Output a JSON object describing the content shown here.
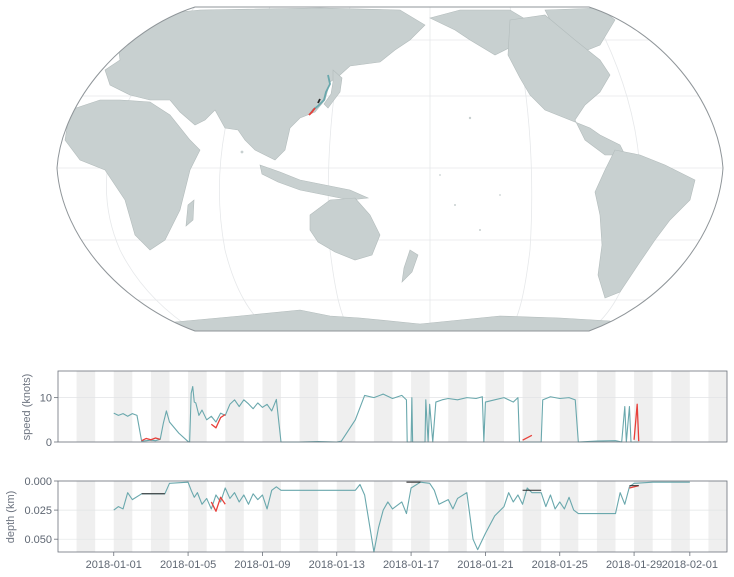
{
  "colors": {
    "land": "#c8d0d0",
    "land_stroke": "#b3bcbc",
    "ocean": "#ffffff",
    "graticule": "#e6e8ea",
    "map_outline": "#8f9599",
    "stripe": "#efefef",
    "axis": "#6b717a",
    "track": "#6aa8ad",
    "anomaly": "#e8403a",
    "gap": "#2b2b2b"
  },
  "chart_data": [
    {
      "type": "map",
      "projection": "robinson",
      "center_longitude": 150,
      "graticule": true,
      "features": [
        "Eurasia",
        "Africa",
        "Australia",
        "North America",
        "South America",
        "Antarctica",
        "Greenland"
      ],
      "track_region": "East China Sea / Yellow Sea coast"
    },
    {
      "type": "line",
      "ylabel": "speed (knots)",
      "yticks": [
        0,
        10
      ],
      "ylim": [
        0,
        16
      ],
      "xlim": [
        "2017-12-29",
        "2018-02-03"
      ],
      "stripes": "alternating daily shading",
      "series": [
        {
          "color_role": "track",
          "points": [
            [
              "2018-01-01 00:00",
              6.5
            ],
            [
              "2018-01-01 06:00",
              6.0
            ],
            [
              "2018-01-01 12:00",
              6.4
            ],
            [
              "2018-01-01 18:00",
              5.8
            ],
            [
              "2018-01-02 00:00",
              6.4
            ],
            [
              "2018-01-02 06:00",
              6.0
            ],
            [
              "2018-01-02 12:00",
              0.2
            ],
            [
              "2018-01-02 18:00",
              0.3
            ],
            [
              "2018-01-03 00:00",
              0.4
            ],
            [
              "2018-01-03 06:00",
              0.3
            ],
            [
              "2018-01-03 12:00",
              0.6
            ],
            [
              "2018-01-03 16:00",
              4.2
            ],
            [
              "2018-01-03 20:00",
              7.0
            ],
            [
              "2018-01-04 00:00",
              4.5
            ],
            [
              "2018-01-04 12:00",
              2.0
            ],
            [
              "2018-01-05 00:00",
              0.1
            ],
            [
              "2018-01-05 02:00",
              0.0
            ],
            [
              "2018-01-05 04:00",
              11.0
            ],
            [
              "2018-01-05 06:00",
              12.5
            ],
            [
              "2018-01-05 08:00",
              9.0
            ],
            [
              "2018-01-05 10:00",
              8.8
            ],
            [
              "2018-01-05 14:00",
              6.0
            ],
            [
              "2018-01-05 18:00",
              7.2
            ],
            [
              "2018-01-06 00:00",
              5.0
            ],
            [
              "2018-01-06 06:00",
              5.8
            ],
            [
              "2018-01-06 12:00",
              4.5
            ],
            [
              "2018-01-06 18:00",
              6.5
            ],
            [
              "2018-01-07 00:00",
              6.0
            ],
            [
              "2018-01-07 06:00",
              8.5
            ],
            [
              "2018-01-07 12:00",
              9.5
            ],
            [
              "2018-01-07 18:00",
              8.0
            ],
            [
              "2018-01-08 00:00",
              9.5
            ],
            [
              "2018-01-08 06:00",
              8.6
            ],
            [
              "2018-01-08 12:00",
              7.5
            ],
            [
              "2018-01-08 18:00",
              8.8
            ],
            [
              "2018-01-09 00:00",
              7.8
            ],
            [
              "2018-01-09 06:00",
              8.5
            ],
            [
              "2018-01-09 12:00",
              7.0
            ],
            [
              "2018-01-09 18:00",
              9.6
            ],
            [
              "2018-01-10 00:00",
              0.0
            ],
            [
              "2018-01-11 00:00",
              0.0
            ],
            [
              "2018-01-12 00:00",
              0.1
            ],
            [
              "2018-01-13 00:00",
              0.0
            ],
            [
              "2018-01-13 06:00",
              0.2
            ],
            [
              "2018-01-14 00:00",
              5.0
            ],
            [
              "2018-01-14 12:00",
              10.5
            ],
            [
              "2018-01-15 00:00",
              10.0
            ],
            [
              "2018-01-15 12:00",
              10.8
            ],
            [
              "2018-01-16 00:00",
              9.8
            ],
            [
              "2018-01-16 12:00",
              10.5
            ],
            [
              "2018-01-16 18:00",
              9.5
            ],
            [
              "2018-01-16 19:00",
              0.0
            ],
            [
              "2018-01-17 00:00",
              0.0
            ],
            [
              "2018-01-17 01:00",
              10.0
            ],
            [
              "2018-01-17 02:00",
              0.0
            ],
            [
              "2018-01-17 18:00",
              0.0
            ],
            [
              "2018-01-17 19:00",
              9.5
            ],
            [
              "2018-01-17 22:00",
              0.0
            ],
            [
              "2018-01-18 00:00",
              8.5
            ],
            [
              "2018-01-18 04:00",
              0.0
            ],
            [
              "2018-01-18 08:00",
              9.0
            ],
            [
              "2018-01-18 16:00",
              9.5
            ],
            [
              "2018-01-19 00:00",
              9.8
            ],
            [
              "2018-01-19 12:00",
              9.5
            ],
            [
              "2018-01-20 00:00",
              10.0
            ],
            [
              "2018-01-20 12:00",
              9.8
            ],
            [
              "2018-01-20 20:00",
              10.2
            ],
            [
              "2018-01-20 22:00",
              0.0
            ],
            [
              "2018-01-21 00:00",
              9.0
            ],
            [
              "2018-01-21 12:00",
              9.5
            ],
            [
              "2018-01-22 00:00",
              10.0
            ],
            [
              "2018-01-22 12:00",
              9.0
            ],
            [
              "2018-01-22 18:00",
              10.0
            ],
            [
              "2018-01-22 20:00",
              0.0
            ],
            [
              "2018-01-23 00:00",
              0.0
            ],
            [
              "2018-01-24 00:00",
              0.0
            ],
            [
              "2018-01-24 02:00",
              9.5
            ],
            [
              "2018-01-24 12:00",
              10.2
            ],
            [
              "2018-01-25 00:00",
              9.8
            ],
            [
              "2018-01-25 12:00",
              10.0
            ],
            [
              "2018-01-25 20:00",
              9.5
            ],
            [
              "2018-01-26 00:00",
              0.0
            ],
            [
              "2018-01-27 00:00",
              0.2
            ],
            [
              "2018-01-28 00:00",
              0.3
            ],
            [
              "2018-01-28 08:00",
              0.0
            ],
            [
              "2018-01-28 12:00",
              8.0
            ],
            [
              "2018-01-28 14:00",
              0.0
            ],
            [
              "2018-01-28 18:00",
              8.0
            ],
            [
              "2018-01-28 20:00",
              0.0
            ],
            [
              "2018-01-29 00:00",
              0.0
            ],
            [
              "2018-01-29 06:00",
              0.0
            ]
          ]
        },
        {
          "color_role": "anomaly",
          "segments": [
            [
              [
                "2018-01-02 12:00",
                0.3
              ],
              [
                "2018-01-02 18:00",
                0.8
              ],
              [
                "2018-01-03 00:00",
                0.5
              ],
              [
                "2018-01-03 06:00",
                0.9
              ],
              [
                "2018-01-03 12:00",
                0.6
              ]
            ],
            [
              [
                "2018-01-06 06:00",
                4.0
              ],
              [
                "2018-01-06 12:00",
                3.2
              ],
              [
                "2018-01-06 18:00",
                5.5
              ],
              [
                "2018-01-07 00:00",
                6.2
              ]
            ],
            [
              [
                "2018-01-23 00:00",
                0.4
              ],
              [
                "2018-01-23 12:00",
                1.5
              ]
            ],
            [
              [
                "2018-01-29 00:00",
                0.5
              ],
              [
                "2018-01-29 04:00",
                8.5
              ],
              [
                "2018-01-29 06:00",
                0.2
              ]
            ]
          ]
        }
      ]
    },
    {
      "type": "line",
      "ylabel": "depth (km)",
      "yticks": [
        0.0,
        0.025,
        0.05
      ],
      "ytick_labels": [
        "0.000",
        "0.025",
        "0.050"
      ],
      "ylim": [
        0.0,
        0.061
      ],
      "y_inverted": true,
      "xlim": [
        "2017-12-29",
        "2018-02-03"
      ],
      "xticks": [
        "2018-01-01",
        "2018-01-05",
        "2018-01-09",
        "2018-01-13",
        "2018-01-17",
        "2018-01-21",
        "2018-01-25",
        "2018-01-29",
        "2018-02-01"
      ],
      "stripes": "alternating daily shading",
      "series": [
        {
          "color_role": "track",
          "points": [
            [
              "2018-01-01 00:00",
              0.025
            ],
            [
              "2018-01-01 06:00",
              0.022
            ],
            [
              "2018-01-01 12:00",
              0.024
            ],
            [
              "2018-01-01 18:00",
              0.01
            ],
            [
              "2018-01-02 00:00",
              0.016
            ],
            [
              "2018-01-02 12:00",
              0.011
            ],
            [
              "2018-01-03 18:00",
              0.011
            ],
            [
              "2018-01-04 00:00",
              0.002
            ],
            [
              "2018-01-05 00:00",
              0.001
            ],
            [
              "2018-01-05 04:00",
              0.008
            ],
            [
              "2018-01-05 08:00",
              0.014
            ],
            [
              "2018-01-05 12:00",
              0.01
            ],
            [
              "2018-01-05 18:00",
              0.02
            ],
            [
              "2018-01-06 00:00",
              0.015
            ],
            [
              "2018-01-06 06:00",
              0.024
            ],
            [
              "2018-01-06 12:00",
              0.012
            ],
            [
              "2018-01-06 18:00",
              0.018
            ],
            [
              "2018-01-07 00:00",
              0.006
            ],
            [
              "2018-01-07 06:00",
              0.015
            ],
            [
              "2018-01-07 12:00",
              0.01
            ],
            [
              "2018-01-07 18:00",
              0.018
            ],
            [
              "2018-01-08 00:00",
              0.012
            ],
            [
              "2018-01-08 06:00",
              0.02
            ],
            [
              "2018-01-08 12:00",
              0.011
            ],
            [
              "2018-01-08 18:00",
              0.016
            ],
            [
              "2018-01-09 00:00",
              0.012
            ],
            [
              "2018-01-09 06:00",
              0.024
            ],
            [
              "2018-01-09 12:00",
              0.008
            ],
            [
              "2018-01-09 18:00",
              0.005
            ],
            [
              "2018-01-10 00:00",
              0.008
            ],
            [
              "2018-01-14 00:00",
              0.008
            ],
            [
              "2018-01-14 06:00",
              0.003
            ],
            [
              "2018-01-14 12:00",
              0.012
            ],
            [
              "2018-01-15 00:00",
              0.061
            ],
            [
              "2018-01-15 06:00",
              0.04
            ],
            [
              "2018-01-15 12:00",
              0.025
            ],
            [
              "2018-01-15 18:00",
              0.018
            ],
            [
              "2018-01-16 00:00",
              0.024
            ],
            [
              "2018-01-16 12:00",
              0.018
            ],
            [
              "2018-01-16 18:00",
              0.028
            ],
            [
              "2018-01-17 00:00",
              0.006
            ],
            [
              "2018-01-17 12:00",
              0.001
            ],
            [
              "2018-01-18 00:00",
              0.002
            ],
            [
              "2018-01-18 06:00",
              0.008
            ],
            [
              "2018-01-18 12:00",
              0.02
            ],
            [
              "2018-01-19 00:00",
              0.016
            ],
            [
              "2018-01-19 06:00",
              0.024
            ],
            [
              "2018-01-19 12:00",
              0.015
            ],
            [
              "2018-01-20 00:00",
              0.01
            ],
            [
              "2018-01-20 08:00",
              0.05
            ],
            [
              "2018-01-20 14:00",
              0.059
            ],
            [
              "2018-01-21 00:00",
              0.045
            ],
            [
              "2018-01-21 12:00",
              0.03
            ],
            [
              "2018-01-22 00:00",
              0.022
            ],
            [
              "2018-01-22 06:00",
              0.01
            ],
            [
              "2018-01-22 12:00",
              0.018
            ],
            [
              "2018-01-22 18:00",
              0.012
            ],
            [
              "2018-01-23 00:00",
              0.02
            ],
            [
              "2018-01-23 06:00",
              0.006
            ],
            [
              "2018-01-23 12:00",
              0.01
            ],
            [
              "2018-01-24 00:00",
              0.01
            ],
            [
              "2018-01-24 06:00",
              0.022
            ],
            [
              "2018-01-24 12:00",
              0.012
            ],
            [
              "2018-01-24 18:00",
              0.024
            ],
            [
              "2018-01-25 00:00",
              0.018
            ],
            [
              "2018-01-25 06:00",
              0.024
            ],
            [
              "2018-01-25 12:00",
              0.014
            ],
            [
              "2018-01-25 18:00",
              0.025
            ],
            [
              "2018-01-26 00:00",
              0.028
            ],
            [
              "2018-01-27 00:00",
              0.028
            ],
            [
              "2018-01-28 00:00",
              0.028
            ],
            [
              "2018-01-28 06:00",
              0.01
            ],
            [
              "2018-01-28 12:00",
              0.02
            ],
            [
              "2018-01-28 18:00",
              0.005
            ],
            [
              "2018-01-29 00:00",
              0.002
            ],
            [
              "2018-01-30 00:00",
              0.001
            ],
            [
              "2018-01-31 00:00",
              0.001
            ],
            [
              "2018-02-01 00:00",
              0.001
            ]
          ]
        },
        {
          "color_role": "anomaly",
          "segments": [
            [
              [
                "2018-01-06 06:00",
                0.018
              ],
              [
                "2018-01-06 12:00",
                0.026
              ],
              [
                "2018-01-06 18:00",
                0.014
              ],
              [
                "2018-01-07 00:00",
                0.02
              ]
            ],
            [
              [
                "2018-01-28 18:00",
                0.006
              ],
              [
                "2018-01-29 06:00",
                0.004
              ]
            ]
          ]
        },
        {
          "color_role": "gap",
          "segments": [
            [
              [
                "2018-01-02 12:00",
                0.011
              ],
              [
                "2018-01-03 18:00",
                0.011
              ]
            ],
            [
              [
                "2018-01-16 18:00",
                0.001
              ],
              [
                "2018-01-17 12:00",
                0.001
              ]
            ],
            [
              [
                "2018-01-23 00:00",
                0.008
              ],
              [
                "2018-01-24 00:00",
                0.008
              ]
            ],
            [
              [
                "2018-01-28 18:00",
                0.004
              ],
              [
                "2018-01-29 06:00",
                0.004
              ]
            ]
          ]
        }
      ]
    }
  ]
}
